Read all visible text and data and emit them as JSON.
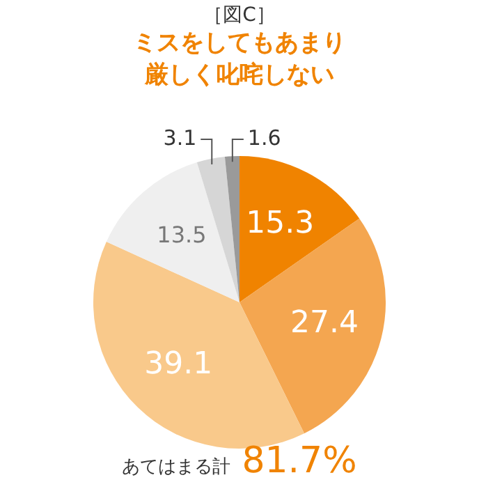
{
  "chart_data": {
    "type": "pie",
    "title": "［図C］",
    "subtitle": "ミスをしてもあまり厳しく叱咤しない",
    "categories": [
      null,
      null,
      null,
      null,
      null,
      null
    ],
    "values": [
      15.3,
      27.4,
      39.1,
      13.5,
      3.1,
      1.6
    ],
    "colors": [
      "#f08300",
      "#f4a650",
      "#f9c98b",
      "#efefef",
      "#d6d6d6",
      "#9a9a9a"
    ],
    "data_labels": true,
    "legend": false,
    "annotations": [
      "あてはまる計",
      "81.7%"
    ]
  }
}
